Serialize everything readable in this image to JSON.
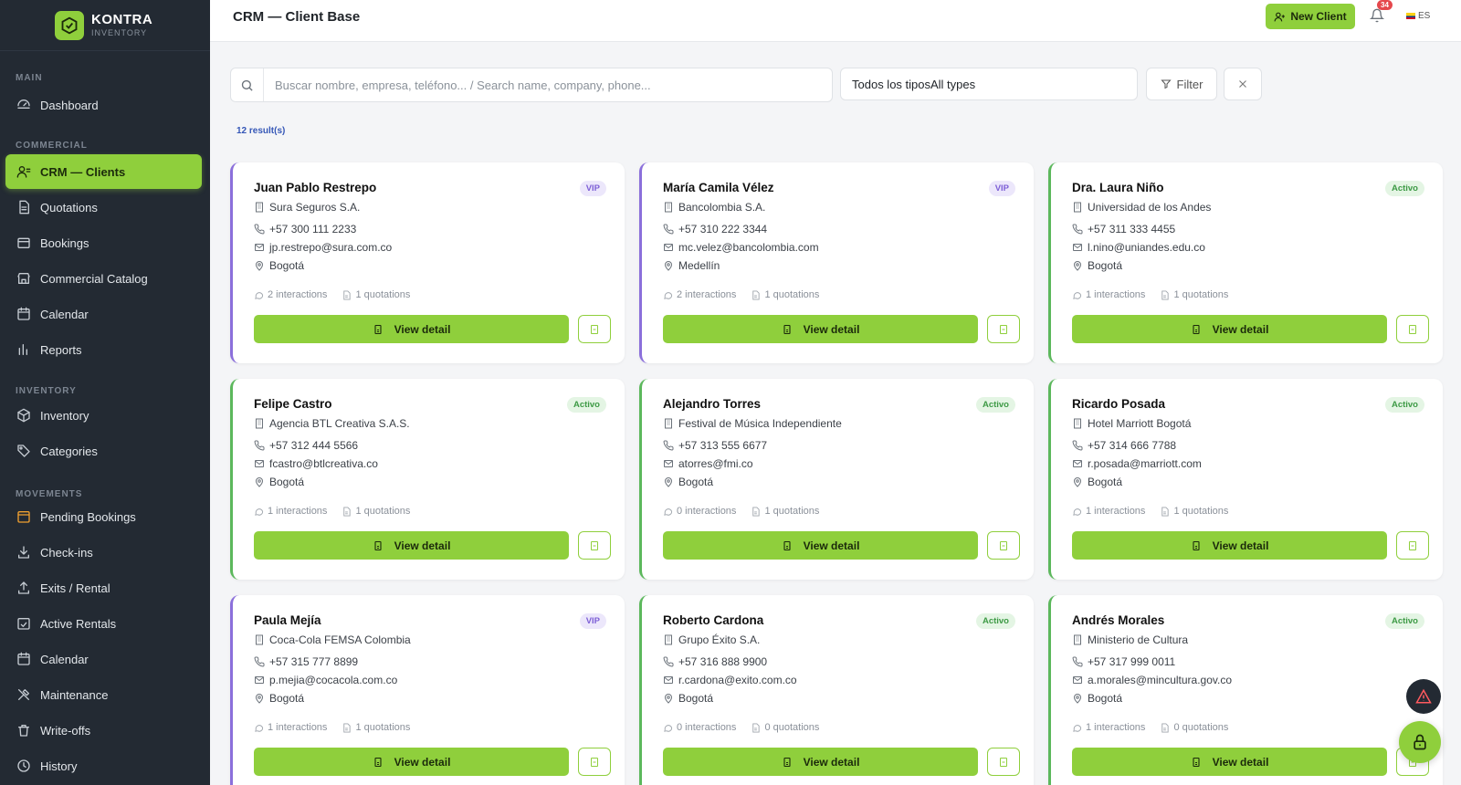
{
  "brand": {
    "name": "KONTRA",
    "subtitle": "INVENTORY"
  },
  "sidebar": {
    "sections": [
      {
        "label": "MAIN"
      },
      {
        "label": "COMMERCIAL"
      },
      {
        "label": "INVENTORY"
      },
      {
        "label": "MOVEMENTS"
      }
    ],
    "items": [
      {
        "label": "Dashboard",
        "icon": "dashboard-icon"
      },
      {
        "label": "CRM — Clients",
        "icon": "users-icon"
      },
      {
        "label": "Quotations",
        "icon": "document-icon"
      },
      {
        "label": "Bookings",
        "icon": "bookings-icon"
      },
      {
        "label": "Commercial Catalog",
        "icon": "store-icon"
      },
      {
        "label": "Calendar",
        "icon": "calendar-icon"
      },
      {
        "label": "Reports",
        "icon": "bar-chart-icon"
      },
      {
        "label": "Inventory",
        "icon": "box-icon"
      },
      {
        "label": "Categories",
        "icon": "tag-icon"
      },
      {
        "label": "Pending Bookings",
        "icon": "pending-icon"
      },
      {
        "label": "Check-ins",
        "icon": "check-in-icon"
      },
      {
        "label": "Exits / Rental",
        "icon": "exit-icon"
      },
      {
        "label": "Active Rentals",
        "icon": "rentals-icon"
      },
      {
        "label": "Calendar",
        "icon": "calendar-icon"
      },
      {
        "label": "Maintenance",
        "icon": "tools-icon"
      },
      {
        "label": "Write-offs",
        "icon": "trash-icon"
      },
      {
        "label": "History",
        "icon": "history-icon"
      }
    ]
  },
  "header": {
    "title": "CRM — Client Base",
    "new_client_label": "New Client",
    "notifications_count": "34",
    "language": "ES"
  },
  "toolbar": {
    "search_placeholder": "Buscar nombre, empresa, teléfono... / Search name, company, phone...",
    "type_select_value": "Todos los tiposAll types",
    "filter_label": "Filter",
    "results_text": "12 result(s)"
  },
  "colors": {
    "accent": "#8fcf3c",
    "vip": "#8b6fdb",
    "active": "#5cb85c",
    "sidebar": "#232a33"
  },
  "clients": [
    {
      "name": "Juan Pablo Restrepo",
      "tag": "VIP",
      "company": "Sura Seguros S.A.",
      "phone": "+57 300 111 2233",
      "email": "jp.restrepo@sura.com.co",
      "city": "Bogotá",
      "interactions": "2 interactions",
      "quotations": "1 quotations",
      "detail_label": "View detail"
    },
    {
      "name": "María Camila Vélez",
      "tag": "VIP",
      "company": "Bancolombia S.A.",
      "phone": "+57 310 222 3344",
      "email": "mc.velez@bancolombia.com",
      "city": "Medellín",
      "interactions": "2 interactions",
      "quotations": "1 quotations",
      "detail_label": "View detail"
    },
    {
      "name": "Dra. Laura Niño",
      "tag": "Activo",
      "company": "Universidad de los Andes",
      "phone": "+57 311 333 4455",
      "email": "l.nino@uniandes.edu.co",
      "city": "Bogotá",
      "interactions": "1 interactions",
      "quotations": "1 quotations",
      "detail_label": "View detail"
    },
    {
      "name": "Felipe Castro",
      "tag": "Activo",
      "company": "Agencia BTL Creativa S.A.S.",
      "phone": "+57 312 444 5566",
      "email": "fcastro@btlcreativa.co",
      "city": "Bogotá",
      "interactions": "1 interactions",
      "quotations": "1 quotations",
      "detail_label": "View detail"
    },
    {
      "name": "Alejandro Torres",
      "tag": "Activo",
      "company": "Festival de Música Independiente",
      "phone": "+57 313 555 6677",
      "email": "atorres@fmi.co",
      "city": "Bogotá",
      "interactions": "0 interactions",
      "quotations": "1 quotations",
      "detail_label": "View detail"
    },
    {
      "name": "Ricardo Posada",
      "tag": "Activo",
      "company": "Hotel Marriott Bogotá",
      "phone": "+57 314 666 7788",
      "email": "r.posada@marriott.com",
      "city": "Bogotá",
      "interactions": "1 interactions",
      "quotations": "1 quotations",
      "detail_label": "View detail"
    },
    {
      "name": "Paula Mejía",
      "tag": "VIP",
      "company": "Coca-Cola FEMSA Colombia",
      "phone": "+57 315 777 8899",
      "email": "p.mejia@cocacola.com.co",
      "city": "Bogotá",
      "interactions": "1 interactions",
      "quotations": "1 quotations",
      "detail_label": "View detail"
    },
    {
      "name": "Roberto Cardona",
      "tag": "Activo",
      "company": "Grupo Éxito S.A.",
      "phone": "+57 316 888 9900",
      "email": "r.cardona@exito.com.co",
      "city": "Bogotá",
      "interactions": "0 interactions",
      "quotations": "0 quotations",
      "detail_label": "View detail"
    },
    {
      "name": "Andrés Morales",
      "tag": "Activo",
      "company": "Ministerio de Cultura",
      "phone": "+57 317 999 0011",
      "email": "a.morales@mincultura.gov.co",
      "city": "Bogotá",
      "interactions": "1 interactions",
      "quotations": "0 quotations",
      "detail_label": "View detail"
    }
  ]
}
